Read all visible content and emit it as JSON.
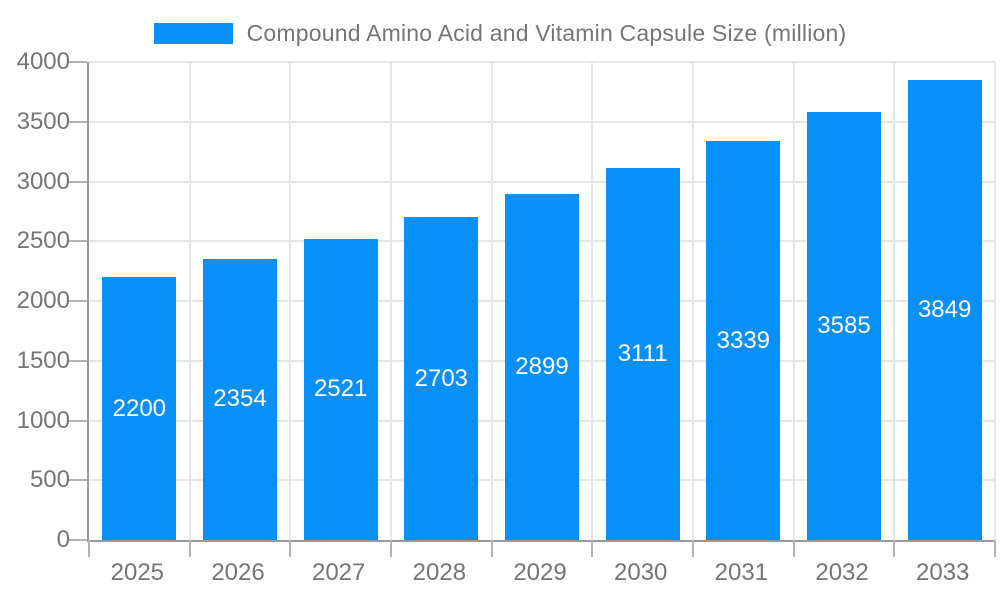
{
  "chart_data": {
    "type": "bar",
    "title": "Compound Amino Acid and Vitamin Capsule Size (million)",
    "categories": [
      "2025",
      "2026",
      "2027",
      "2028",
      "2029",
      "2030",
      "2031",
      "2032",
      "2033"
    ],
    "values": [
      2200,
      2354,
      2521,
      2703,
      2899,
      3111,
      3339,
      3585,
      3849
    ],
    "xlabel": "",
    "ylabel": "",
    "ylim": [
      0,
      4000
    ],
    "yticks": [
      0,
      500,
      1000,
      1500,
      2000,
      2500,
      3000,
      3500,
      4000
    ],
    "grid": true,
    "legend_position": "top",
    "colors": {
      "bar": "#0790f8",
      "bar_label": "#ffffff",
      "axis_text": "#757575",
      "gridline": "#e6e6e6",
      "axis_line": "#9a9a9a",
      "tick": "#b3b3b3"
    }
  }
}
